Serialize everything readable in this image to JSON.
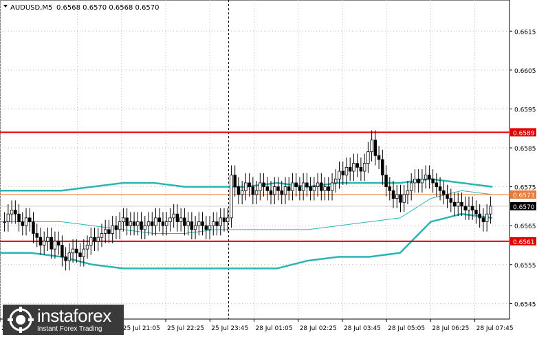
{
  "header": {
    "symbol": "AUDUSD,M5",
    "ohlc": "0.6568 0.6570 0.6568 0.6570"
  },
  "watermark": {
    "brand": "instaforex",
    "tagline": "Instant Forex Trading"
  },
  "chart_data": {
    "type": "candlestick",
    "symbol": "AUDUSD",
    "timeframe": "M5",
    "ylim": [
      0.6541,
      0.6623
    ],
    "y_ticks": [
      "0.6615",
      "0.6605",
      "0.6595",
      "0.6585",
      "0.6575",
      "0.6565",
      "0.6555",
      "0.6545"
    ],
    "x_ticks": [
      "25 Jul 2020",
      "25 Jul 19:45",
      "25 Jul 21:05",
      "25 Jul 22:25",
      "25 Jul 23:45",
      "28 Jul 01:05",
      "28 Jul 02:25",
      "28 Jul 03:45",
      "28 Jul 05:05",
      "28 Jul 06:25",
      "28 Jul 07:45"
    ],
    "x_tick_positions": [
      0.0,
      0.152,
      0.2386,
      0.3253,
      0.412,
      0.4986,
      0.5853,
      0.672,
      0.7586,
      0.8453,
      0.932
    ],
    "session_separator_x": 0.4488,
    "levels": [
      {
        "value": 0.6589,
        "label": "0.6589",
        "color": "#e00000"
      },
      {
        "value": 0.6573,
        "label": "0.6573",
        "color": "#e87a3a"
      },
      {
        "value": 0.6561,
        "label": "0.6561",
        "color": "#e00000"
      }
    ],
    "current_price": {
      "value": 0.657,
      "label": "0.6570"
    },
    "close_series": [
      0.6566,
      0.6568,
      0.6569,
      0.6568,
      0.6566,
      0.6565,
      0.6567,
      0.6566,
      0.6563,
      0.6562,
      0.656,
      0.6561,
      0.6562,
      0.6559,
      0.6561,
      0.656,
      0.6557,
      0.6556,
      0.6558,
      0.6559,
      0.6558,
      0.6557,
      0.6559,
      0.656,
      0.6562,
      0.6561,
      0.6562,
      0.6563,
      0.6564,
      0.6563,
      0.6565,
      0.6564,
      0.6566,
      0.6567,
      0.6565,
      0.6566,
      0.6565,
      0.6566,
      0.6564,
      0.6565,
      0.6566,
      0.6565,
      0.6567,
      0.6566,
      0.6565,
      0.6566,
      0.6567,
      0.6568,
      0.6566,
      0.6567,
      0.6565,
      0.6566,
      0.6564,
      0.6565,
      0.6566,
      0.6565,
      0.6564,
      0.6565,
      0.6566,
      0.6565,
      0.6567,
      0.6566,
      0.6567,
      0.6578,
      0.6575,
      0.6573,
      0.6574,
      0.6576,
      0.6575,
      0.6573,
      0.6574,
      0.6576,
      0.6575,
      0.6574,
      0.6573,
      0.6575,
      0.6574,
      0.6573,
      0.6575,
      0.6574,
      0.6576,
      0.6575,
      0.6574,
      0.6576,
      0.6575,
      0.6574,
      0.6575,
      0.6576,
      0.6574,
      0.6575,
      0.6574,
      0.6576,
      0.6577,
      0.6579,
      0.6578,
      0.658,
      0.6579,
      0.6581,
      0.658,
      0.6579,
      0.6581,
      0.6584,
      0.6587,
      0.6583,
      0.6582,
      0.6578,
      0.6575,
      0.6574,
      0.6572,
      0.6573,
      0.6571,
      0.6573,
      0.6574,
      0.6576,
      0.6577,
      0.6576,
      0.6577,
      0.6578,
      0.6577,
      0.6576,
      0.6575,
      0.6574,
      0.6573,
      0.6572,
      0.6571,
      0.657,
      0.6571,
      0.657,
      0.6569,
      0.657,
      0.6569,
      0.6568,
      0.6567,
      0.6566,
      0.6568,
      0.657
    ],
    "bb_upper": [
      0.6574,
      0.6574,
      0.6574,
      0.6575,
      0.6576,
      0.6576,
      0.6575,
      0.6575,
      0.6575,
      0.6576,
      0.6575,
      0.6576,
      0.6576,
      0.6576,
      0.6577,
      0.6576,
      0.6575
    ],
    "bb_middle": [
      0.6566,
      0.6566,
      0.6566,
      0.6565,
      0.6564,
      0.6563,
      0.6563,
      0.6564,
      0.6564,
      0.6564,
      0.6564,
      0.6565,
      0.6566,
      0.6567,
      0.6572,
      0.6574,
      0.6573
    ],
    "bb_lower": [
      0.6558,
      0.6558,
      0.6557,
      0.6555,
      0.6554,
      0.6554,
      0.6554,
      0.6554,
      0.6554,
      0.6554,
      0.6556,
      0.6557,
      0.6557,
      0.6558,
      0.6566,
      0.6568,
      0.6567
    ],
    "colors": {
      "candle": "#000000",
      "bollinger_outer": "#2ab5b5",
      "bollinger_middle": "#2ab5b5",
      "grid": "#bcbcbc",
      "axis": "#000000"
    }
  }
}
